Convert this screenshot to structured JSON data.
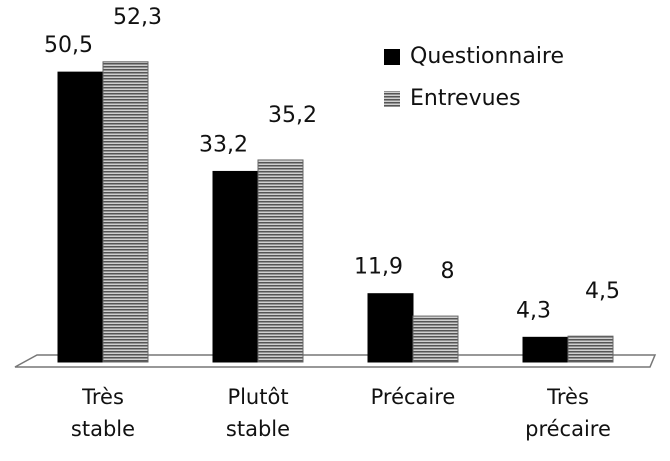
{
  "chart_data": {
    "type": "bar",
    "categories": [
      "Très stable",
      "Plutôt stable",
      "Précaire",
      "Très précaire"
    ],
    "series": [
      {
        "name": "Questionnaire",
        "color": "#000000",
        "values": [
          50.5,
          33.2,
          11.9,
          4.3
        ],
        "value_labels": [
          "50,5",
          "33,2",
          "11,9",
          "4,3"
        ]
      },
      {
        "name": "Entrevues",
        "color": "#8c8c8c",
        "values": [
          52.3,
          35.2,
          8,
          4.5
        ],
        "value_labels": [
          "52,3",
          "35,2",
          "8",
          "4,5"
        ]
      }
    ],
    "legend": "top-right"
  }
}
